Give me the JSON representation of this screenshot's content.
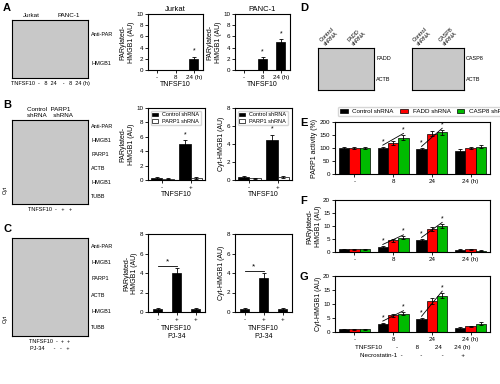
{
  "chart_data": [
    {
      "type": "blot",
      "color": "#c8c8c8",
      "categories": [
        "Jurkat",
        "PANC-1"
      ],
      "row_labels": [
        "Anti-PAR",
        "HMGB1"
      ],
      "xlabel": [
        "TNFSF10  -   8  24    -   8  24 (h)"
      ],
      "annotations": [
        {
          "text": "A"
        }
      ]
    },
    {
      "type": "bar",
      "title": "Jurkat",
      "categories": [
        "-",
        "8",
        "24 (h)"
      ],
      "values": [
        0.0,
        0.0,
        2.0
      ],
      "errors": [
        0.0,
        0.0,
        0.4
      ],
      "color": "#000000",
      "ylabel": "PARylated-\nHMGB1 (AU)",
      "xlabel": "TNFSF10",
      "ylim": [
        0,
        10
      ],
      "yticks": [
        0,
        2,
        4,
        6,
        8,
        10
      ],
      "annotations": [
        {
          "text": "*",
          "index": 2
        }
      ]
    },
    {
      "type": "bar",
      "title": "PANC-1",
      "categories": [
        "-",
        "8",
        "24 (h)"
      ],
      "values": [
        0.0,
        2.0,
        5.0
      ],
      "errors": [
        0.0,
        0.3,
        0.6
      ],
      "color": "#000000",
      "ylabel": "PARylated-\nHMGB1 (AU)",
      "xlabel": "TNFSF10",
      "ylim": [
        0,
        10
      ],
      "yticks": [
        0,
        2,
        4,
        6,
        8,
        10
      ],
      "annotations": [
        {
          "text": "*",
          "index": 1
        },
        {
          "text": "*",
          "index": 2
        }
      ]
    },
    {
      "type": "blot",
      "color": "#c8c8c8",
      "title": "Control  PARP1\nshRNA    shRNA",
      "row_labels": [
        "Anti-PAR",
        "HMGB1",
        "PARP1",
        "ACTB",
        "HMGB1",
        "TUBB"
      ],
      "ylabel": "Cyt",
      "xlabel": [
        "TNFSF10  -   +   +"
      ],
      "annotations": [
        {
          "text": "B"
        }
      ]
    },
    {
      "type": "bar",
      "categories": [
        "-",
        "+"
      ],
      "series": [
        {
          "name": "Control shRNA",
          "color": "#000000",
          "values": [
            0.3,
            5.0
          ],
          "errors": [
            0.1,
            0.5
          ]
        },
        {
          "name": "PARP1 shRNA",
          "color": "#ffffff",
          "values": [
            0.2,
            0.3
          ],
          "errors": [
            0.05,
            0.1
          ]
        }
      ],
      "ylabel": "PARylated-\nHMGB1 (AU)",
      "xlabel": "TNFSF10",
      "ylim": [
        0,
        10
      ],
      "yticks": [
        0,
        2,
        4,
        6,
        8,
        10
      ],
      "legend": "upper left",
      "annotations": [
        {
          "text": "*",
          "index": 1,
          "series": "Control shRNA"
        }
      ]
    },
    {
      "type": "bar",
      "categories": [
        "-",
        "+"
      ],
      "series": [
        {
          "name": "Control shRNA",
          "color": "#000000",
          "values": [
            0.3,
            4.5
          ],
          "errors": [
            0.1,
            0.5
          ]
        },
        {
          "name": "PARP1 shRNA",
          "color": "#ffffff",
          "values": [
            0.2,
            0.3
          ],
          "errors": [
            0.05,
            0.1
          ]
        }
      ],
      "ylabel": "Cyt-HMGB1 (AU)",
      "xlabel": "TNFSF10",
      "ylim": [
        0,
        8
      ],
      "yticks": [
        0,
        2,
        4,
        6,
        8
      ],
      "legend": "upper left",
      "annotations": [
        {
          "text": "*",
          "index": 1,
          "series": "Control shRNA"
        }
      ]
    },
    {
      "type": "blot",
      "color": "#c8c8c8",
      "row_labels": [
        "Anti-PAR",
        "HMGB1",
        "PARP1",
        "ACTB",
        "HMGB1",
        "TUBB"
      ],
      "ylabel": "Cyt",
      "xlabel": [
        "TNFSF10  -  +  +",
        "PJ-34      -   -   +"
      ],
      "annotations": [
        {
          "text": "C"
        }
      ]
    },
    {
      "type": "bar",
      "categories": [
        "-",
        "+",
        "+"
      ],
      "values": [
        0.3,
        4.0,
        0.3
      ],
      "errors": [
        0.1,
        0.5,
        0.1
      ],
      "color": "#000000",
      "ylabel": "PARylated-\nHMGB1 (AU)",
      "xlabel": [
        "TNFSF10",
        "PJ-34"
      ],
      "ylim": [
        0,
        8
      ],
      "yticks": [
        0,
        2,
        4,
        6,
        8
      ],
      "annotations": [
        {
          "text": "*",
          "span": [
            0,
            1
          ]
        }
      ]
    },
    {
      "type": "bar",
      "categories": [
        "-",
        "+",
        "+"
      ],
      "values": [
        0.3,
        3.5,
        0.3
      ],
      "errors": [
        0.1,
        0.5,
        0.1
      ],
      "color": "#000000",
      "ylabel": "Cyt-HMGB1 (AU)",
      "xlabel": [
        "TNFSF10",
        "PJ-34"
      ],
      "ylim": [
        0,
        8
      ],
      "yticks": [
        0,
        2,
        4,
        6,
        8
      ],
      "annotations": [
        {
          "text": "*",
          "span": [
            0,
            1
          ]
        }
      ]
    },
    {
      "type": "blot",
      "color": "#c8c8c8",
      "categories": [
        "Control\nshRNA",
        "FADD\nshRNA"
      ],
      "row_labels": [
        "FADD",
        "ACTB"
      ],
      "annotations": [
        {
          "text": "D"
        }
      ]
    },
    {
      "type": "blot",
      "color": "#c8c8c8",
      "categories": [
        "Control\nshRNA",
        "CASP8\nshRNA"
      ],
      "row_labels": [
        "CASP8",
        "ACTB"
      ]
    },
    {
      "type": "bar",
      "categories": [
        "-",
        "8",
        "24",
        "24 (h)"
      ],
      "series": [
        {
          "name": "Control shRNA",
          "color": "#000000",
          "values": [
            100,
            100,
            95,
            90
          ],
          "errors": [
            5,
            5,
            5,
            5
          ]
        },
        {
          "name": "FADD shRNA",
          "color": "#ff0000",
          "values": [
            100,
            120,
            155,
            100
          ],
          "errors": [
            5,
            8,
            10,
            5
          ]
        },
        {
          "name": "CASP8 shRNA",
          "color": "#00bb00",
          "values": [
            100,
            140,
            160,
            105
          ],
          "errors": [
            5,
            10,
            10,
            5
          ]
        }
      ],
      "ylabel": "PARP1 activity (%)",
      "ylim": [
        0,
        200
      ],
      "yticks": [
        0,
        50,
        100,
        150,
        200
      ],
      "legend": "top",
      "annotations": [
        {
          "text": "E"
        },
        {
          "text": "*",
          "index": 1,
          "series": [
            "Control shRNA",
            "CASP8 shRNA"
          ]
        },
        {
          "text": "*",
          "index": 2,
          "series": [
            "Control shRNA",
            "CASP8 shRNA"
          ]
        }
      ]
    },
    {
      "type": "bar",
      "categories": [
        "-",
        "8",
        "24",
        "24 (h)"
      ],
      "series": [
        {
          "name": "Control shRNA",
          "color": "#000000",
          "values": [
            1.0,
            2.0,
            4.5,
            0.8
          ],
          "errors": [
            0.2,
            0.3,
            0.5,
            0.2
          ]
        },
        {
          "name": "FADD shRNA",
          "color": "#ff0000",
          "values": [
            1.0,
            4.5,
            9.0,
            1.0
          ],
          "errors": [
            0.2,
            0.5,
            0.8,
            0.2
          ]
        },
        {
          "name": "CASP8 shRNA",
          "color": "#00bb00",
          "values": [
            1.0,
            5.5,
            10.0,
            0.5
          ],
          "errors": [
            0.2,
            0.5,
            0.8,
            0.2
          ]
        }
      ],
      "ylabel": "PARylated-\nHMGB1 (AU)",
      "ylim": [
        0,
        20
      ],
      "yticks": [
        0,
        5,
        10,
        15,
        20
      ],
      "annotations": [
        {
          "text": "F"
        },
        {
          "text": "*",
          "index": 1,
          "series": [
            "Control shRNA",
            "CASP8 shRNA"
          ]
        },
        {
          "text": "*",
          "index": 2,
          "series": [
            "Control shRNA",
            "CASP8 shRNA"
          ]
        }
      ]
    },
    {
      "type": "bar",
      "categories": [
        "-",
        "8",
        "24",
        "24 (h)"
      ],
      "series": [
        {
          "name": "Control shRNA",
          "color": "#000000",
          "values": [
            1.0,
            3.0,
            4.5,
            1.5
          ],
          "errors": [
            0.2,
            0.3,
            0.5,
            0.3
          ]
        },
        {
          "name": "FADD shRNA",
          "color": "#ff0000",
          "values": [
            1.0,
            6.0,
            11.0,
            2.0
          ],
          "errors": [
            0.2,
            0.5,
            1.0,
            0.3
          ]
        },
        {
          "name": "CASP8 shRNA",
          "color": "#00bb00",
          "values": [
            1.0,
            6.5,
            13.0,
            3.0
          ],
          "errors": [
            0.2,
            0.5,
            1.0,
            0.4
          ]
        }
      ],
      "ylabel": "Cyt-HMGB1 (AU)",
      "xlabel": [
        "TNFSF10        -          8         24       24 (h)",
        "Necrostatin-1  -          -           -          +"
      ],
      "ylim": [
        0,
        20
      ],
      "yticks": [
        0,
        5,
        10,
        15,
        20
      ],
      "annotations": [
        {
          "text": "G"
        },
        {
          "text": "*",
          "index": 1,
          "series": [
            "Control shRNA",
            "CASP8 shRNA"
          ]
        },
        {
          "text": "*",
          "index": 2,
          "series": [
            "Control shRNA",
            "CASP8 shRNA"
          ]
        }
      ]
    }
  ]
}
